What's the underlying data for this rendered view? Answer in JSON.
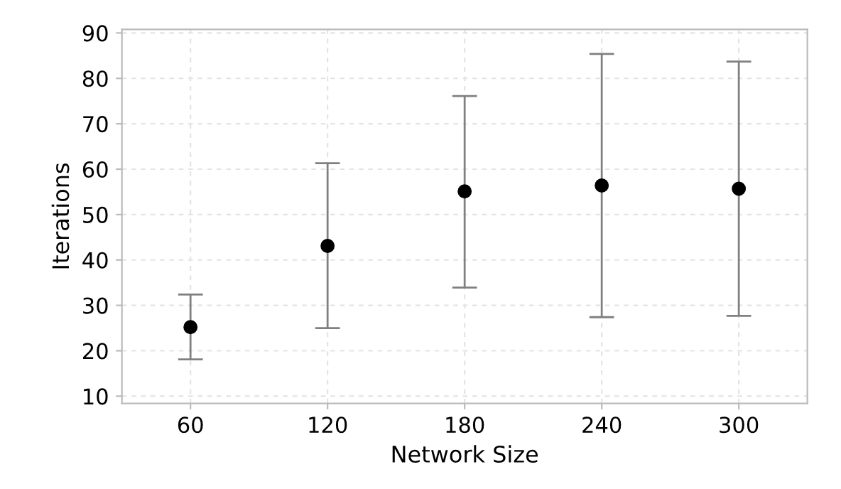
{
  "chart_data": {
    "type": "scatter",
    "xlabel": "Network Size",
    "ylabel": "Iterations",
    "categories": [
      "60",
      "120",
      "180",
      "240",
      "300"
    ],
    "values": [
      25.2,
      43.1,
      55.1,
      56.4,
      55.7
    ],
    "errors": [
      [
        18.1,
        32.4
      ],
      [
        25.0,
        61.3
      ],
      [
        33.9,
        76.1
      ],
      [
        27.4,
        85.4
      ],
      [
        27.7,
        83.7
      ]
    ],
    "color": "#000000",
    "marker": "circle",
    "ylim": [
      8.4,
      90.8
    ],
    "yticks": [
      10,
      20,
      30,
      40,
      50,
      60,
      70,
      80,
      90
    ],
    "grid": true
  }
}
